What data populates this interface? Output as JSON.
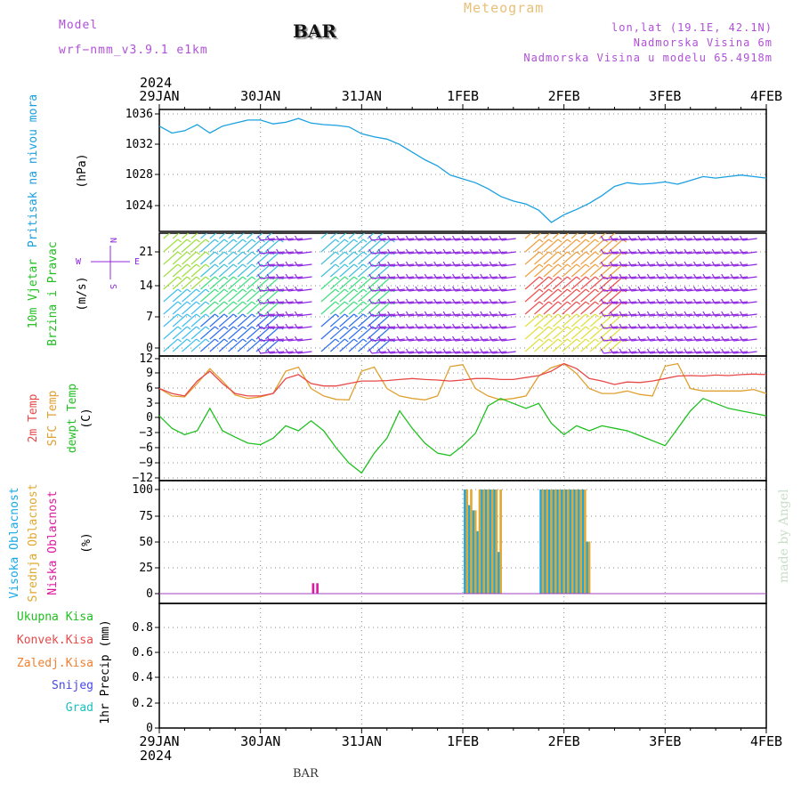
{
  "header": {
    "model_label": "Model",
    "model_name": "wrf−nmm_v3.9.1  e1km",
    "title": "BAR",
    "meteogram": "Meteogram",
    "lonlat": "lon,lat (19.1E, 42.1N)",
    "elevation": "Nadmorska Visina 6m",
    "model_elevation": "Nadmorska Visina u modelu 65.4918m"
  },
  "footer": {
    "station": "BAR",
    "made_by": "made by Angel"
  },
  "colors": {
    "pressure": "#1aa0e0",
    "temp2m": "#e84848",
    "sfc": "#e0a030",
    "dewpt": "#20c020",
    "high_cloud": "#18a8e8",
    "mid_cloud": "#e0a830",
    "low_cloud": "#e018a0",
    "wind_purple": "#9028e0"
  },
  "time_axis": {
    "year_top": "2024",
    "year_bottom": "2024",
    "day_labels": [
      "29JAN",
      "30JAN",
      "31JAN",
      "1FEB",
      "2FEB",
      "3FEB",
      "4FEB"
    ]
  },
  "chart_data": [
    {
      "type": "line",
      "panel": "pressure",
      "ylabel_lines": [
        "Pritisak na nivou mora"
      ],
      "unit": "(hPa)",
      "yticks": [
        "1036",
        "1032",
        "1028",
        "1024"
      ],
      "ylim": [
        1020.5,
        1036.5
      ],
      "x_unit": "hours since 29JAN 00",
      "series": [
        {
          "color": "#1aa0e0",
          "x": [
            0,
            3,
            6,
            9,
            12,
            15,
            18,
            21,
            24,
            27,
            30,
            33,
            36,
            39,
            42,
            45,
            48,
            51,
            54,
            57,
            60,
            63,
            66,
            69,
            72,
            75,
            78,
            81,
            84,
            87,
            90,
            93,
            96,
            99,
            102,
            105,
            108,
            111,
            114,
            117,
            120,
            123,
            126,
            129,
            132,
            135,
            138,
            141,
            144
          ],
          "y": [
            1034.4,
            1033.5,
            1033.8,
            1034.6,
            1033.5,
            1034.4,
            1034.8,
            1035.2,
            1035.2,
            1034.7,
            1034.9,
            1035.4,
            1034.8,
            1034.6,
            1034.5,
            1034.3,
            1033.4,
            1033.0,
            1032.7,
            1032.0,
            1031.0,
            1030.0,
            1029.2,
            1028.0,
            1027.5,
            1027.0,
            1026.2,
            1025.2,
            1024.6,
            1024.2,
            1023.4,
            1021.8,
            1022.8,
            1023.5,
            1024.3,
            1025.3,
            1026.5,
            1027.0,
            1026.8,
            1026.9,
            1027.1,
            1026.8,
            1027.3,
            1027.8,
            1027.6,
            1027.8,
            1028.0,
            1027.8,
            1027.6
          ]
        }
      ]
    },
    {
      "type": "barbs",
      "panel": "wind",
      "ylabel_lines": [
        "10m Vjetar",
        "Brzina i Pravac"
      ],
      "unit": "(m/s)",
      "compass": [
        "N",
        "W",
        "E",
        "S"
      ],
      "yticks": [
        "21",
        "14",
        "7",
        "0"
      ],
      "ylim": [
        0,
        25
      ]
    },
    {
      "type": "line",
      "panel": "temperature",
      "ylabel_lines": [
        "2m Temp",
        "SFC Temp",
        "dewpt Temp"
      ],
      "unit": "(C)",
      "yticks": [
        "12",
        "9",
        "6",
        "3",
        "0",
        "−3",
        "−6",
        "−9",
        "−12"
      ],
      "ylim": [
        -12,
        12
      ],
      "x_unit": "hours since 29JAN 00",
      "series": [
        {
          "color": "#e84848",
          "x": [
            0,
            3,
            6,
            9,
            12,
            15,
            18,
            21,
            24,
            27,
            30,
            33,
            36,
            39,
            42,
            45,
            48,
            51,
            54,
            57,
            60,
            63,
            66,
            69,
            72,
            75,
            78,
            81,
            84,
            87,
            90,
            93,
            96,
            99,
            102,
            105,
            108,
            111,
            114,
            117,
            120,
            123,
            126,
            129,
            132,
            135,
            138,
            141,
            144
          ],
          "y": [
            6.0,
            5.0,
            4.5,
            7.5,
            9.5,
            7.0,
            5.0,
            4.5,
            4.5,
            5.0,
            8.0,
            8.8,
            7.0,
            6.5,
            6.5,
            7.0,
            7.5,
            7.5,
            7.6,
            7.8,
            8.0,
            7.8,
            7.7,
            7.5,
            7.7,
            8.0,
            8.0,
            7.8,
            7.8,
            8.2,
            8.6,
            9.5,
            11.0,
            10.0,
            8.0,
            7.5,
            6.8,
            7.3,
            7.2,
            7.5,
            8.0,
            8.5,
            8.6,
            8.5,
            8.7,
            8.6,
            8.8,
            8.9,
            8.8
          ]
        },
        {
          "color": "#e0a030",
          "x": [
            0,
            3,
            6,
            9,
            12,
            15,
            18,
            21,
            24,
            27,
            30,
            33,
            36,
            39,
            42,
            45,
            48,
            51,
            54,
            57,
            60,
            63,
            66,
            69,
            72,
            75,
            78,
            81,
            84,
            87,
            90,
            93,
            96,
            99,
            102,
            105,
            108,
            111,
            114,
            117,
            120,
            123,
            126,
            129,
            132,
            135,
            138,
            141,
            144
          ],
          "y": [
            6.0,
            4.5,
            4.3,
            7.0,
            10.0,
            7.5,
            4.7,
            4.0,
            4.3,
            5.0,
            9.5,
            10.3,
            6.0,
            4.5,
            3.8,
            3.7,
            9.5,
            10.3,
            6.0,
            4.5,
            4.0,
            3.7,
            4.5,
            10.4,
            10.8,
            6.0,
            4.5,
            3.7,
            4.0,
            4.5,
            8.5,
            10.2,
            11.0,
            9.0,
            6.0,
            5.0,
            5.0,
            5.5,
            4.8,
            4.5,
            10.5,
            11.0,
            6.0,
            5.5,
            5.5,
            5.5,
            5.5,
            5.8,
            5.0
          ]
        },
        {
          "color": "#20c020",
          "x": [
            0,
            3,
            6,
            9,
            12,
            15,
            18,
            21,
            24,
            27,
            30,
            33,
            36,
            39,
            42,
            45,
            48,
            51,
            54,
            57,
            60,
            63,
            66,
            69,
            72,
            75,
            78,
            81,
            84,
            87,
            90,
            93,
            96,
            99,
            102,
            105,
            108,
            111,
            114,
            117,
            120,
            123,
            126,
            129,
            132,
            135,
            138,
            141,
            144
          ],
          "y": [
            0.5,
            -2.0,
            -3.3,
            -2.5,
            2.0,
            -2.5,
            -3.8,
            -5.0,
            -5.3,
            -4.0,
            -1.5,
            -2.5,
            -0.5,
            -2.5,
            -6.0,
            -9.0,
            -11.0,
            -7.0,
            -4.0,
            1.5,
            -2.0,
            -5.0,
            -7.0,
            -7.5,
            -5.5,
            -3.0,
            2.5,
            4.0,
            3.0,
            2.0,
            3.0,
            -1.0,
            -3.3,
            -1.5,
            -2.5,
            -1.5,
            -2.0,
            -2.5,
            -3.5,
            -4.5,
            -5.5,
            -2.0,
            1.5,
            4.0,
            3.0,
            2.0,
            1.5,
            1.0,
            0.5
          ]
        }
      ]
    },
    {
      "type": "bar",
      "panel": "clouds",
      "ylabel_lines": [
        "Visoka Oblacnost",
        "Srednja Oblacnost",
        "Niska Oblacnost"
      ],
      "unit": "(%)",
      "yticks": [
        "100",
        "75",
        "50",
        "25",
        "0"
      ],
      "ylim": [
        0,
        100
      ],
      "x_unit": "hours since 29JAN 00",
      "series": [
        {
          "name": "Visoka Oblacnost",
          "color": "#18a8e8",
          "x": [
            72.5,
            73.5,
            74.5,
            75.5,
            76.5,
            77.5,
            78.5,
            79.5,
            80.5,
            90.5,
            91.5,
            92.5,
            93.5,
            94.5,
            95.5,
            96.5,
            97.5,
            98.5,
            99.5,
            100.5,
            101.5
          ],
          "values": [
            100,
            85,
            80,
            60,
            100,
            100,
            100,
            100,
            40,
            100,
            100,
            100,
            100,
            100,
            100,
            100,
            100,
            100,
            100,
            100,
            50
          ]
        },
        {
          "name": "Srednja Oblacnost",
          "color": "#e0a830",
          "x": [
            73,
            74,
            75,
            76,
            77,
            78,
            79,
            80,
            81,
            91,
            92,
            93,
            94,
            95,
            96,
            97,
            98,
            99,
            100,
            101,
            102
          ],
          "values": [
            100,
            100,
            80,
            100,
            100,
            100,
            100,
            100,
            100,
            100,
            100,
            100,
            100,
            100,
            100,
            100,
            100,
            100,
            100,
            100,
            50
          ]
        },
        {
          "name": "Niska Oblacnost",
          "color": "#e018a0",
          "x": [
            36.5,
            37.5
          ],
          "values": [
            10,
            10
          ]
        }
      ]
    },
    {
      "type": "line",
      "panel": "precipitation",
      "legend": [
        "Ukupna  Kisa",
        "Konvek.Kisa",
        "Zaledj.Kisa",
        "Snijeg",
        "Grad"
      ],
      "legend_colors": [
        "#20c020",
        "#e84848",
        "#f08030",
        "#4848e8",
        "#18c0c0"
      ],
      "ylabel_lines": [
        "1hr Precip (mm)"
      ],
      "yticks": [
        "0.8",
        "0.6",
        "0.4",
        "0.2",
        "0"
      ],
      "ylim": [
        0,
        1
      ],
      "series": []
    }
  ]
}
